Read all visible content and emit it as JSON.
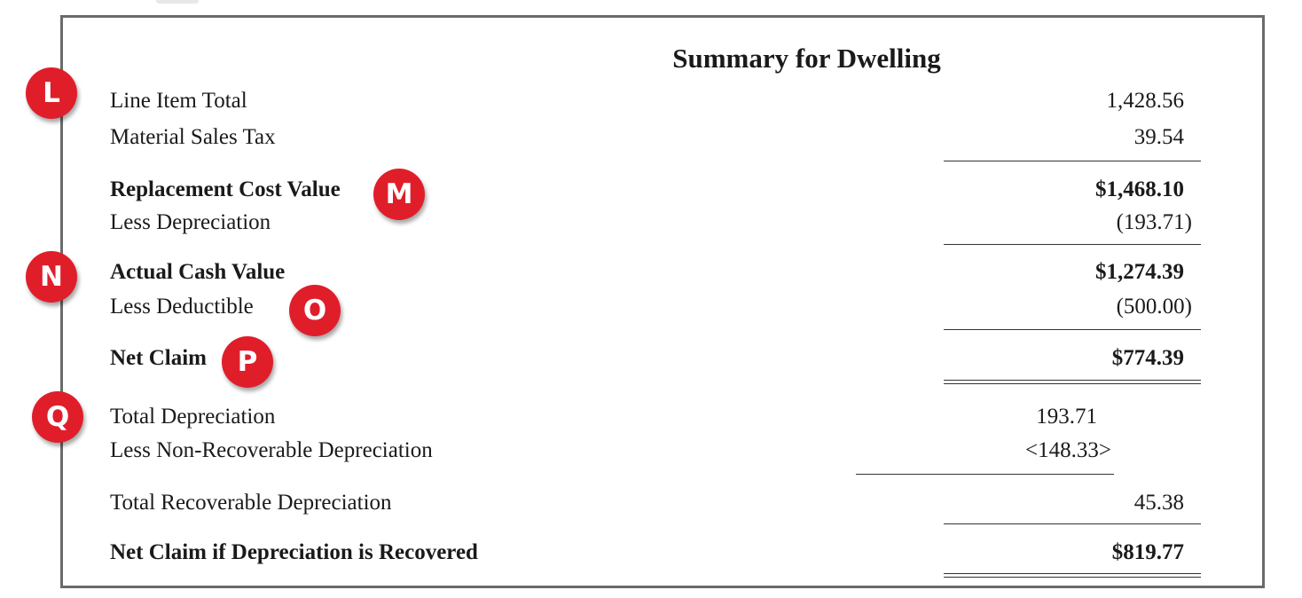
{
  "title": "Summary for Dwelling",
  "rows": {
    "line_item_total": {
      "label": "Line Item Total",
      "value": "1,428.56"
    },
    "material_sales_tax": {
      "label": "Material Sales Tax",
      "value": "39.54"
    },
    "replacement_cost_value": {
      "label": "Replacement Cost Value",
      "value": "$1,468.10"
    },
    "less_depreciation": {
      "label": "Less Depreciation",
      "value": "(193.71)"
    },
    "actual_cash_value": {
      "label": "Actual Cash Value",
      "value": "$1,274.39"
    },
    "less_deductible": {
      "label": "Less Deductible",
      "value": "(500.00)"
    },
    "net_claim": {
      "label": "Net Claim",
      "value": "$774.39"
    },
    "total_depreciation": {
      "label": "Total Depreciation",
      "value": "193.71"
    },
    "less_non_recoverable_depreciation": {
      "label": "Less Non-Recoverable Depreciation",
      "value": "<148.33>"
    },
    "total_recoverable_depreciation": {
      "label": "Total Recoverable Depreciation",
      "value": "45.38"
    },
    "net_claim_if_recovered": {
      "label": "Net Claim if Depreciation is Recovered",
      "value": "$819.77"
    }
  },
  "markers": {
    "l": "L",
    "m": "M",
    "n": "N",
    "o": "O",
    "p": "P",
    "q": "Q"
  },
  "colors": {
    "marker": "#e01e2a",
    "frame": "#6b6b6b"
  }
}
